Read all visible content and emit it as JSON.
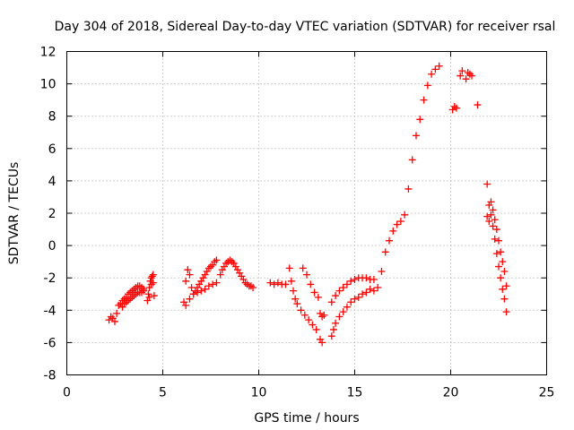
{
  "chart_data": {
    "type": "scatter",
    "title": "Day 304 of 2018, Sidereal Day-to-day VTEC variation (SDTVAR) for receiver rsal",
    "xlabel": "GPS time / hours",
    "ylabel": "SDTVAR / TECUs",
    "xlim": [
      0,
      25
    ],
    "ylim": [
      -8,
      12
    ],
    "xticks": [
      0,
      5,
      10,
      15,
      20,
      25
    ],
    "yticks": [
      -8,
      -6,
      -4,
      -2,
      0,
      2,
      4,
      6,
      8,
      10,
      12
    ],
    "xtick_labels": [
      "0",
      "5",
      "10",
      "15",
      "20",
      "25"
    ],
    "ytick_labels": [
      "-8",
      "-6",
      "-4",
      "-2",
      "0",
      "2",
      "4",
      "6",
      "8",
      "10",
      "12"
    ],
    "grid": true,
    "marker": "plus",
    "color": "#ff0000",
    "series": [
      {
        "name": "segment-1",
        "x": [
          2.2,
          2.3,
          2.4,
          2.5,
          2.6,
          2.7,
          2.8,
          2.9,
          3.0,
          3.1,
          3.2,
          3.3,
          3.4,
          3.5,
          3.6,
          3.7,
          3.8,
          3.9,
          4.0
        ],
        "y": [
          -4.6,
          -4.4,
          -4.5,
          -4.7,
          -4.2,
          -3.7,
          -3.6,
          -3.4,
          -3.3,
          -3.2,
          -3.0,
          -2.9,
          -2.8,
          -2.7,
          -2.6,
          -2.5,
          -2.5,
          -2.6,
          -2.7
        ]
      },
      {
        "name": "segment-2",
        "x": [
          2.9,
          3.0,
          3.1,
          3.2,
          3.3,
          3.4,
          3.5,
          3.6,
          3.7,
          3.8,
          3.9,
          4.0
        ],
        "y": [
          -3.8,
          -3.6,
          -3.5,
          -3.4,
          -3.3,
          -3.2,
          -3.1,
          -3.0,
          -2.9,
          -2.9,
          -2.9,
          -2.8
        ]
      },
      {
        "name": "segment-3",
        "x": [
          4.2,
          4.25,
          4.3,
          4.35,
          4.4,
          4.45,
          4.5,
          4.55,
          4.3,
          4.4,
          4.5
        ],
        "y": [
          -3.4,
          -3.0,
          -2.6,
          -2.2,
          -2.0,
          -1.9,
          -2.3,
          -3.1,
          -3.2,
          -2.4,
          -1.8
        ]
      },
      {
        "name": "segment-4",
        "x": [
          6.1,
          6.2,
          6.3,
          6.4,
          6.5,
          6.6,
          6.7,
          6.8,
          6.9,
          7.0,
          7.1,
          7.2,
          7.3,
          7.4,
          7.5,
          7.6,
          7.7,
          7.8
        ],
        "y": [
          -3.5,
          -2.2,
          -1.5,
          -1.8,
          -2.6,
          -3.0,
          -2.8,
          -2.6,
          -2.4,
          -2.2,
          -2.0,
          -1.8,
          -1.6,
          -1.4,
          -1.3,
          -1.2,
          -1.0,
          -0.9
        ]
      },
      {
        "name": "segment-5",
        "x": [
          6.2,
          6.4,
          6.6,
          6.8,
          7.0,
          7.2,
          7.4,
          7.6,
          7.8
        ],
        "y": [
          -3.7,
          -3.3,
          -3.0,
          -2.9,
          -2.8,
          -2.7,
          -2.5,
          -2.4,
          -2.3
        ]
      },
      {
        "name": "segment-6",
        "x": [
          8.0,
          8.1,
          8.2,
          8.3,
          8.4,
          8.5,
          8.6,
          8.7,
          8.8,
          8.9,
          9.0,
          9.1,
          9.2,
          9.3,
          9.4,
          9.5,
          9.6,
          9.7
        ],
        "y": [
          -1.8,
          -1.5,
          -1.3,
          -1.1,
          -1.0,
          -0.9,
          -1.0,
          -1.1,
          -1.3,
          -1.5,
          -1.7,
          -1.9,
          -2.1,
          -2.3,
          -2.4,
          -2.5,
          -2.5,
          -2.6
        ]
      },
      {
        "name": "segment-7",
        "x": [
          10.6,
          10.8,
          11.0,
          11.2,
          11.4
        ],
        "y": [
          -2.3,
          -2.4,
          -2.3,
          -2.4,
          -2.4
        ]
      },
      {
        "name": "segment-8",
        "x": [
          11.6,
          11.7,
          11.8,
          11.9,
          12.0,
          12.2,
          12.4,
          12.6,
          12.8,
          13.0,
          13.2,
          13.3
        ],
        "y": [
          -1.4,
          -2.2,
          -2.8,
          -3.3,
          -3.6,
          -4.0,
          -4.3,
          -4.6,
          -4.9,
          -5.2,
          -5.8,
          -6.0
        ]
      },
      {
        "name": "segment-9",
        "x": [
          12.3,
          12.5,
          12.7,
          12.9,
          13.1,
          13.2,
          13.3,
          13.4
        ],
        "y": [
          -1.4,
          -1.8,
          -2.4,
          -2.9,
          -3.2,
          -4.2,
          -4.4,
          -4.3
        ]
      },
      {
        "name": "segment-10",
        "x": [
          13.8,
          13.9,
          14.0,
          14.2,
          14.4,
          14.6,
          14.8,
          15.0,
          15.2,
          15.4,
          15.6
        ],
        "y": [
          -5.6,
          -5.2,
          -4.8,
          -4.4,
          -4.1,
          -3.8,
          -3.5,
          -3.3,
          -3.2,
          -3.0,
          -2.9
        ]
      },
      {
        "name": "segment-11",
        "x": [
          13.8,
          14.0,
          14.2,
          14.4,
          14.6,
          14.8,
          15.0,
          15.2,
          15.4,
          15.6,
          15.8,
          16.0
        ],
        "y": [
          -3.5,
          -3.1,
          -2.8,
          -2.6,
          -2.4,
          -2.2,
          -2.1,
          -2.0,
          -2.0,
          -2.0,
          -2.1,
          -2.1
        ]
      },
      {
        "name": "segment-12",
        "x": [
          15.8,
          16.0,
          16.2,
          16.4,
          16.6,
          16.8,
          17.0,
          17.2,
          17.4,
          17.6,
          17.8,
          18.0,
          18.2,
          18.4,
          18.6,
          18.8,
          19.0,
          19.2,
          19.4
        ],
        "y": [
          -2.7,
          -2.8,
          -2.6,
          -1.6,
          -0.4,
          0.3,
          0.9,
          1.3,
          1.5,
          1.9,
          3.5,
          5.3,
          6.8,
          7.8,
          9.0,
          9.9,
          10.6,
          10.9,
          11.1
        ]
      },
      {
        "name": "segment-13",
        "x": [
          20.1,
          20.2,
          20.3,
          20.5,
          20.6,
          20.8,
          20.9,
          21.0,
          21.1,
          21.4
        ],
        "y": [
          8.4,
          8.6,
          8.5,
          10.5,
          10.8,
          10.3,
          10.7,
          10.6,
          10.5,
          8.7
        ]
      },
      {
        "name": "segment-14",
        "x": [
          21.9,
          22.0,
          22.1,
          22.2,
          22.3,
          22.4,
          22.5,
          22.6,
          22.7,
          22.8,
          22.9
        ],
        "y": [
          3.8,
          2.5,
          1.9,
          1.2,
          0.4,
          -0.5,
          -1.3,
          -2.0,
          -2.7,
          -3.3,
          -4.1
        ]
      },
      {
        "name": "segment-15",
        "x": [
          21.9,
          22.0,
          22.1,
          22.2,
          22.3,
          22.4,
          22.5,
          22.6,
          22.7,
          22.8,
          22.9
        ],
        "y": [
          1.8,
          1.5,
          2.7,
          2.2,
          1.6,
          1.0,
          0.3,
          -0.4,
          -1.0,
          -1.6,
          -2.5
        ]
      }
    ]
  }
}
